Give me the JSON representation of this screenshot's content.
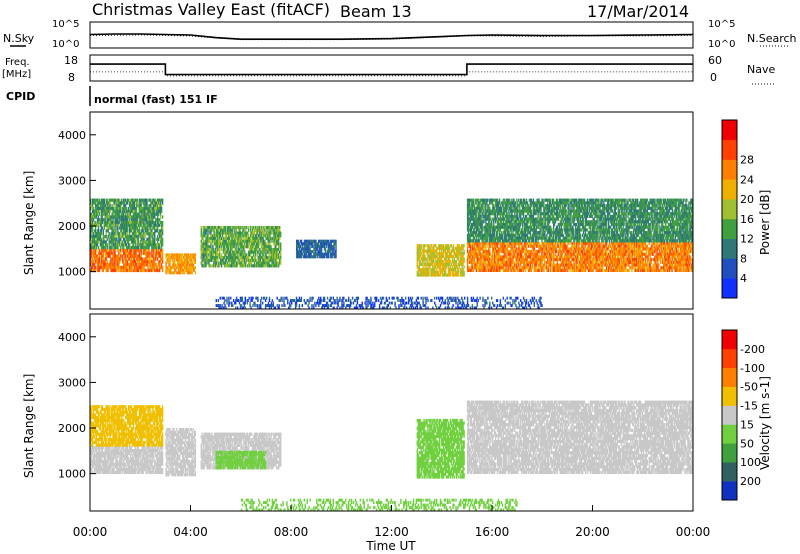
{
  "header": {
    "title": "Christmas Valley East (fitACF)",
    "beam": "Beam 13",
    "date": "17/Mar/2014"
  },
  "labels": {
    "nsky": "N.Sky",
    "nsearch": "N.Search",
    "freq_line1": "Freq.",
    "freq_line2": "[MHz]",
    "nave": "Nave",
    "cpid": "CPID",
    "cpid_value": "normal (fast) 151 IF"
  },
  "chart_data": [
    {
      "type": "line",
      "panel": "noise",
      "left_ticks": [
        "10^5",
        "10^0"
      ],
      "right_ticks": [
        "10^5",
        "10^0"
      ],
      "series": [
        {
          "name": "N.Sky",
          "style": "solid",
          "x": [
            0,
            1,
            2,
            3,
            4,
            5,
            6,
            8,
            10,
            12,
            13,
            14,
            15,
            16,
            18,
            20,
            22,
            24
          ],
          "y": [
            2.6,
            2.7,
            2.7,
            2.6,
            2.5,
            2.0,
            1.7,
            1.7,
            1.7,
            1.8,
            2.0,
            2.2,
            2.4,
            2.5,
            2.4,
            2.4,
            2.5,
            2.6
          ]
        },
        {
          "name": "N.Search",
          "style": "dotted",
          "x": [
            0,
            2,
            4,
            5,
            6,
            8,
            10,
            12,
            14,
            15,
            16,
            18,
            20,
            22,
            24
          ],
          "y": [
            2.4,
            2.5,
            2.3,
            1.9,
            1.6,
            1.6,
            1.6,
            1.7,
            2.1,
            2.3,
            2.3,
            2.2,
            2.3,
            2.3,
            2.4
          ]
        }
      ]
    },
    {
      "type": "line",
      "panel": "frequency",
      "left_ticks": [
        "18",
        "8"
      ],
      "right_ticks": [
        "60",
        "0"
      ],
      "series": [
        {
          "name": "Freq.",
          "style": "solid",
          "x": [
            0,
            3,
            3,
            15,
            15,
            24
          ],
          "y": [
            14.5,
            14.5,
            10.5,
            10.5,
            14.5,
            14.5
          ]
        },
        {
          "name": "Nave",
          "style": "dotted",
          "x": [
            0,
            3,
            3,
            15,
            15,
            24
          ],
          "y": [
            21,
            21,
            12,
            12,
            21,
            21
          ]
        }
      ]
    },
    {
      "type": "heatmap",
      "panel": "power",
      "xlabel": "",
      "ylabel": "Slant Range [km]",
      "xlim": [
        0,
        24
      ],
      "ylim": [
        180,
        4500
      ],
      "y_ticks": [
        1000,
        2000,
        3000,
        4000
      ],
      "colorbar": {
        "label": "Power [dB]",
        "ticks": [
          4,
          8,
          12,
          16,
          20,
          24,
          28
        ],
        "colors": [
          "#1030ff",
          "#2050c0",
          "#307878",
          "#40a040",
          "#a0c030",
          "#f0b000",
          "#ff8000",
          "#ff4000",
          "#f00000"
        ]
      },
      "bands": [
        {
          "t0": 0,
          "t1": 2.9,
          "r0": 1000,
          "r1": 1500,
          "level": 27
        },
        {
          "t0": 0,
          "t1": 2.9,
          "r0": 1500,
          "r1": 2600,
          "level": 13
        },
        {
          "t0": 3.0,
          "t1": 4.2,
          "r0": 950,
          "r1": 1400,
          "level": 24
        },
        {
          "t0": 4.4,
          "t1": 7.6,
          "r0": 1100,
          "r1": 2000,
          "level": 15
        },
        {
          "t0": 8.2,
          "t1": 9.8,
          "r0": 1300,
          "r1": 1700,
          "level": 8
        },
        {
          "t0": 13.0,
          "t1": 14.9,
          "r0": 900,
          "r1": 1600,
          "level": 20
        },
        {
          "t0": 15.0,
          "t1": 24,
          "r0": 1000,
          "r1": 1650,
          "level": 26
        },
        {
          "t0": 15.0,
          "t1": 24,
          "r0": 1650,
          "r1": 2600,
          "level": 12
        },
        {
          "t0": 5.0,
          "t1": 18,
          "r0": 180,
          "r1": 450,
          "level": 6
        }
      ]
    },
    {
      "type": "heatmap",
      "panel": "velocity",
      "xlabel": "Time UT",
      "ylabel": "Slant Range [km]",
      "xlim": [
        0,
        24
      ],
      "ylim": [
        180,
        4500
      ],
      "x_ticks": [
        "00:00",
        "04:00",
        "08:00",
        "12:00",
        "16:00",
        "20:00",
        "00:00"
      ],
      "y_ticks": [
        1000,
        2000,
        3000,
        4000
      ],
      "colorbar": {
        "label": "Velocity [m s-1]",
        "ticks": [
          200,
          100,
          50,
          15,
          -15,
          -50,
          -100,
          -200
        ],
        "colors": [
          "#1030c0",
          "#306060",
          "#40a040",
          "#70d040",
          "#c8c8c8",
          "#f0c000",
          "#ff8000",
          "#ff4000",
          "#f00000"
        ]
      },
      "bands": [
        {
          "t0": 0,
          "t1": 2.9,
          "r0": 1000,
          "r1": 1600,
          "level": 0
        },
        {
          "t0": 0,
          "t1": 2.9,
          "r0": 1600,
          "r1": 2500,
          "level": -20
        },
        {
          "t0": 3.0,
          "t1": 4.2,
          "r0": 950,
          "r1": 2000,
          "level": 0
        },
        {
          "t0": 4.4,
          "t1": 7.6,
          "r0": 1100,
          "r1": 1900,
          "level": 5
        },
        {
          "t0": 5.0,
          "t1": 7.0,
          "r0": 1100,
          "r1": 1500,
          "level": 30
        },
        {
          "t0": 13.0,
          "t1": 14.9,
          "r0": 900,
          "r1": 2200,
          "level": 30
        },
        {
          "t0": 15.0,
          "t1": 24,
          "r0": 1000,
          "r1": 1800,
          "level": 0
        },
        {
          "t0": 15.0,
          "t1": 24,
          "r0": 1800,
          "r1": 2600,
          "level": 0
        },
        {
          "t0": 6.0,
          "t1": 17,
          "r0": 180,
          "r1": 450,
          "level": 30
        }
      ]
    }
  ]
}
